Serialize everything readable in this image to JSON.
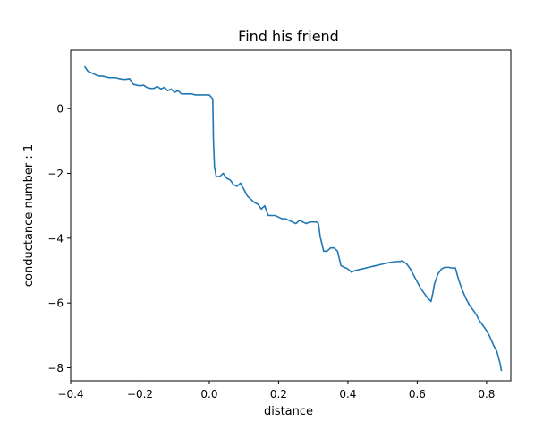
{
  "chart_data": {
    "type": "line",
    "title": "Find his friend",
    "xlabel": "distance",
    "ylabel": "conductance number : 1",
    "xlim": [
      -0.4,
      0.87
    ],
    "ylim": [
      -8.4,
      1.8
    ],
    "xticks": [
      -0.4,
      -0.2,
      0.0,
      0.2,
      0.4,
      0.6,
      0.8
    ],
    "xtick_labels": [
      "−0.4",
      "−0.2",
      "0.0",
      "0.2",
      "0.4",
      "0.6",
      "0.8"
    ],
    "yticks": [
      0,
      -2,
      -4,
      -6,
      -8
    ],
    "ytick_labels": [
      "0",
      "−2",
      "−4",
      "−6",
      "−8"
    ],
    "grid": false,
    "legend": "none",
    "series": [
      {
        "color": "#1f77b4",
        "x": [
          -0.36,
          -0.35,
          -0.34,
          -0.33,
          -0.32,
          -0.31,
          -0.3,
          -0.29,
          -0.28,
          -0.27,
          -0.26,
          -0.25,
          -0.24,
          -0.23,
          -0.22,
          -0.21,
          -0.2,
          -0.19,
          -0.18,
          -0.17,
          -0.16,
          -0.15,
          -0.14,
          -0.13,
          -0.12,
          -0.11,
          -0.1,
          -0.09,
          -0.08,
          -0.07,
          -0.06,
          -0.05,
          -0.04,
          -0.03,
          -0.02,
          -0.01,
          0.0,
          0.01,
          0.012,
          0.015,
          0.02,
          0.03,
          0.04,
          0.05,
          0.06,
          0.07,
          0.08,
          0.09,
          0.1,
          0.11,
          0.12,
          0.13,
          0.14,
          0.15,
          0.16,
          0.17,
          0.18,
          0.19,
          0.2,
          0.21,
          0.22,
          0.23,
          0.24,
          0.25,
          0.26,
          0.27,
          0.28,
          0.29,
          0.3,
          0.31,
          0.315,
          0.32,
          0.33,
          0.34,
          0.35,
          0.36,
          0.37,
          0.38,
          0.39,
          0.4,
          0.41,
          0.42,
          0.44,
          0.46,
          0.48,
          0.5,
          0.52,
          0.54,
          0.55,
          0.555,
          0.56,
          0.57,
          0.58,
          0.59,
          0.6,
          0.61,
          0.62,
          0.63,
          0.64,
          0.645,
          0.65,
          0.66,
          0.67,
          0.68,
          0.69,
          0.7,
          0.71,
          0.72,
          0.73,
          0.74,
          0.75,
          0.76,
          0.77,
          0.78,
          0.79,
          0.8,
          0.81,
          0.82,
          0.83,
          0.835,
          0.84,
          0.843
        ],
        "y": [
          1.3,
          1.15,
          1.1,
          1.05,
          1.0,
          1.0,
          0.98,
          0.95,
          0.95,
          0.95,
          0.92,
          0.9,
          0.9,
          0.92,
          0.75,
          0.72,
          0.7,
          0.72,
          0.65,
          0.62,
          0.62,
          0.68,
          0.6,
          0.65,
          0.55,
          0.6,
          0.5,
          0.55,
          0.45,
          0.45,
          0.45,
          0.45,
          0.42,
          0.42,
          0.42,
          0.42,
          0.42,
          0.3,
          -1.0,
          -1.8,
          -2.1,
          -2.1,
          -2.0,
          -2.15,
          -2.2,
          -2.35,
          -2.4,
          -2.3,
          -2.5,
          -2.7,
          -2.8,
          -2.9,
          -2.95,
          -3.1,
          -3.0,
          -3.3,
          -3.3,
          -3.3,
          -3.35,
          -3.4,
          -3.4,
          -3.45,
          -3.5,
          -3.55,
          -3.45,
          -3.5,
          -3.55,
          -3.5,
          -3.5,
          -3.5,
          -3.55,
          -3.95,
          -4.4,
          -4.4,
          -4.3,
          -4.3,
          -4.4,
          -4.85,
          -4.9,
          -4.95,
          -5.05,
          -5.0,
          -4.95,
          -4.9,
          -4.85,
          -4.8,
          -4.75,
          -4.72,
          -4.72,
          -4.7,
          -4.72,
          -4.8,
          -4.95,
          -5.15,
          -5.35,
          -5.55,
          -5.7,
          -5.85,
          -5.95,
          -5.7,
          -5.4,
          -5.1,
          -4.95,
          -4.9,
          -4.9,
          -4.92,
          -4.92,
          -5.3,
          -5.6,
          -5.85,
          -6.05,
          -6.2,
          -6.35,
          -6.55,
          -6.7,
          -6.85,
          -7.05,
          -7.3,
          -7.5,
          -7.7,
          -7.9,
          -8.1
        ]
      }
    ]
  }
}
